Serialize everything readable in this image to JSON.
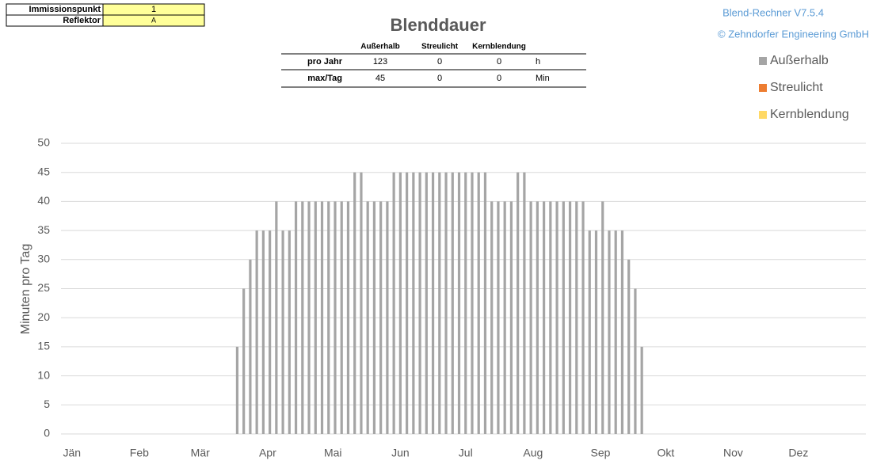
{
  "input_table": {
    "rows": [
      [
        "Immissionspunkt",
        "1"
      ],
      [
        "Reflektor",
        "A"
      ]
    ]
  },
  "version": {
    "line1": "Blend-Rechner   V7.5.4",
    "line2": "© Zehndorfer Engineering GmbH"
  },
  "summary_table": {
    "header": [
      "Außerhalb",
      "Streulicht",
      "Kernblendung"
    ],
    "rows": [
      [
        "pro Jahr",
        "123",
        "0",
        "0",
        "h"
      ],
      [
        "max/Tag",
        "45",
        "0",
        "0",
        "Min"
      ]
    ]
  },
  "chart_data": {
    "type": "bar",
    "title": "Blenddauer",
    "y_label": "Minuten pro Tag",
    "xlim": [
      -5,
      365
    ],
    "xticks": [
      {
        "value": 0,
        "label": "Jän"
      },
      {
        "value": 31,
        "label": "Feb"
      },
      {
        "value": 59,
        "label": "Mär"
      },
      {
        "value": 90,
        "label": "Apr"
      },
      {
        "value": 120,
        "label": "Mai"
      },
      {
        "value": 151,
        "label": "Jun"
      },
      {
        "value": 181,
        "label": "Jul"
      },
      {
        "value": 212,
        "label": "Aug"
      },
      {
        "value": 243,
        "label": "Sep"
      },
      {
        "value": 273,
        "label": "Okt"
      },
      {
        "value": 304,
        "label": "Nov"
      },
      {
        "value": 334,
        "label": "Dez"
      }
    ],
    "ylim": [
      0,
      50
    ],
    "yticks": [
      0,
      5,
      10,
      15,
      20,
      25,
      30,
      35,
      40,
      45,
      50
    ],
    "grid": true,
    "legend": "upper right",
    "x": [
      76,
      79,
      82,
      85,
      88,
      91,
      94,
      97,
      100,
      103,
      106,
      109,
      112,
      115,
      118,
      121,
      124,
      127,
      130,
      133,
      136,
      139,
      142,
      145,
      148,
      151,
      154,
      157,
      160,
      163,
      166,
      169,
      172,
      175,
      178,
      181,
      184,
      187,
      190,
      193,
      196,
      199,
      202,
      205,
      208,
      211,
      214,
      217,
      220,
      223,
      226,
      229,
      232,
      235,
      238,
      241,
      244,
      247,
      250,
      253,
      256,
      259,
      262
    ],
    "series": [
      {
        "name": "Außerhalb",
        "color": "#a5a5a5",
        "values": [
          15,
          25,
          30,
          35,
          35,
          35,
          40,
          35,
          35,
          40,
          40,
          40,
          40,
          40,
          40,
          40,
          40,
          40,
          45,
          45,
          40,
          40,
          40,
          40,
          45,
          45,
          45,
          45,
          45,
          45,
          45,
          45,
          45,
          45,
          45,
          45,
          45,
          45,
          45,
          40,
          40,
          40,
          40,
          45,
          45,
          40,
          40,
          40,
          40,
          40,
          40,
          40,
          40,
          40,
          35,
          35,
          40,
          35,
          35,
          35,
          30,
          25,
          15
        ]
      },
      {
        "name": "Streulicht",
        "color": "#ed7d31",
        "values": [
          0,
          0,
          0,
          0,
          0,
          0,
          0,
          0,
          0,
          0,
          0,
          0,
          0,
          0,
          0,
          0,
          0,
          0,
          0,
          0,
          0,
          0,
          0,
          0,
          0,
          0,
          0,
          0,
          0,
          0,
          0,
          0,
          0,
          0,
          0,
          0,
          0,
          0,
          0,
          0,
          0,
          0,
          0,
          0,
          0,
          0,
          0,
          0,
          0,
          0,
          0,
          0,
          0,
          0,
          0,
          0,
          0,
          0,
          0,
          0,
          0,
          0,
          0
        ]
      },
      {
        "name": "Kernblendung",
        "color": "#ffd966",
        "values": [
          0,
          0,
          0,
          0,
          0,
          0,
          0,
          0,
          0,
          0,
          0,
          0,
          0,
          0,
          0,
          0,
          0,
          0,
          0,
          0,
          0,
          0,
          0,
          0,
          0,
          0,
          0,
          0,
          0,
          0,
          0,
          0,
          0,
          0,
          0,
          0,
          0,
          0,
          0,
          0,
          0,
          0,
          0,
          0,
          0,
          0,
          0,
          0,
          0,
          0,
          0,
          0,
          0,
          0,
          0,
          0,
          0,
          0,
          0,
          0,
          0,
          0,
          0
        ]
      }
    ]
  }
}
